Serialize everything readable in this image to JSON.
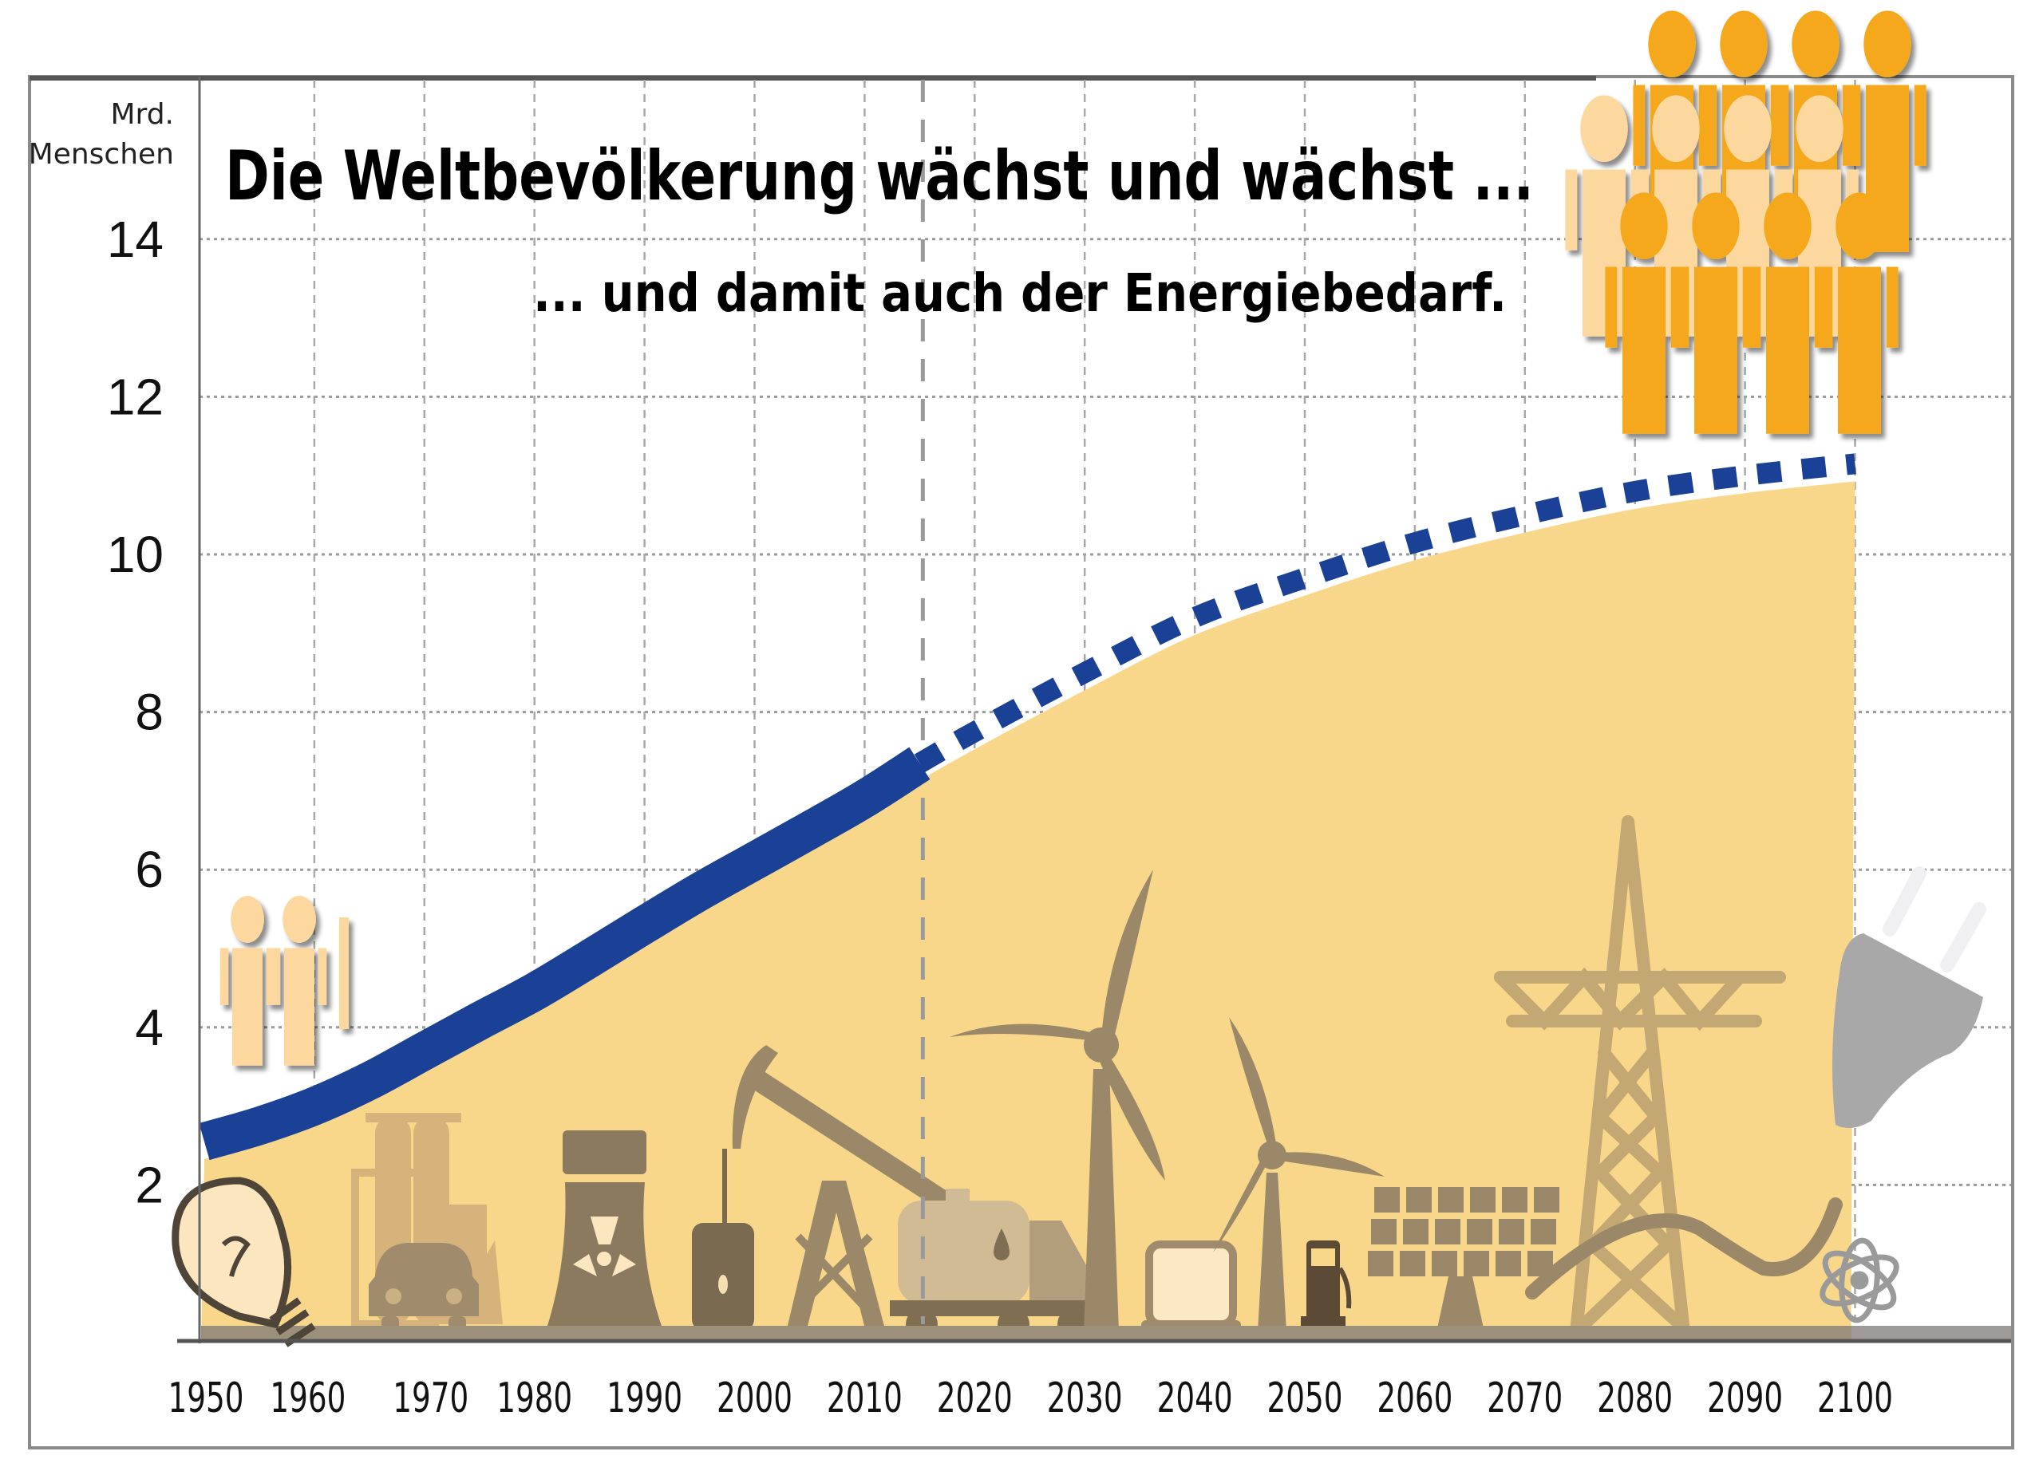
{
  "title": "Die Weltbevölkerung wächst und wächst ...",
  "subtitle": "... und damit auch der Energiebedarf.",
  "y_unit": {
    "line1": "Mrd.",
    "line2": "Menschen"
  },
  "colors": {
    "history_line": "#1a4196",
    "area_fill": "#f8d68a",
    "icons_dark": "#8c7a5e",
    "icons_mid": "#a08c6c",
    "icons_light": "#c2a878",
    "people_orange": "#f5a81c",
    "people_light": "#fcd79e",
    "ground_band": "#9e9a98",
    "plug_gray": "#a8a8a8"
  },
  "icons": [
    "lightbulb-icon",
    "factory-icon",
    "car-icon",
    "nuclear-cooling-tower-icon",
    "oil-barrel-icon",
    "oil-pump-jack-icon",
    "tanker-truck-icon",
    "wind-turbine-icon",
    "computer-monitor-icon",
    "fuel-pump-icon",
    "solar-panel-icon",
    "power-pylon-icon",
    "power-plug-icon",
    "atom-icon",
    "people-group-small-icon",
    "people-group-large-icon"
  ],
  "chart_data": {
    "type": "area",
    "title": "Die Weltbevölkerung wächst und wächst ...",
    "subtitle": "... und damit auch der Energiebedarf.",
    "xlabel": "",
    "ylabel": "Mrd. Menschen",
    "ylim": [
      0,
      14
    ],
    "xlim": [
      1950,
      2100
    ],
    "x_ticks": [
      1950,
      1960,
      1970,
      1980,
      1990,
      2000,
      2010,
      2020,
      2030,
      2040,
      2050,
      2060,
      2070,
      2080,
      2090,
      2100
    ],
    "y_ticks": [
      2,
      4,
      6,
      8,
      10,
      12,
      14
    ],
    "grid": true,
    "legend": "none",
    "projection_start": 2015,
    "series": [
      {
        "name": "Weltbevölkerung (historisch)",
        "style": "solid",
        "x": [
          1950,
          1955,
          1960,
          1965,
          1970,
          1975,
          1980,
          1985,
          1990,
          1995,
          2000,
          2005,
          2010,
          2015
        ],
        "values": [
          2.55,
          2.75,
          3.0,
          3.32,
          3.7,
          4.08,
          4.45,
          4.87,
          5.3,
          5.72,
          6.11,
          6.5,
          6.9,
          7.35
        ]
      },
      {
        "name": "Weltbevölkerung (Prognose)",
        "style": "dashed",
        "x": [
          2015,
          2020,
          2030,
          2040,
          2050,
          2060,
          2070,
          2080,
          2090,
          2100
        ],
        "values": [
          7.35,
          7.75,
          8.5,
          9.2,
          9.7,
          10.15,
          10.5,
          10.8,
          11.0,
          11.15
        ]
      }
    ]
  }
}
